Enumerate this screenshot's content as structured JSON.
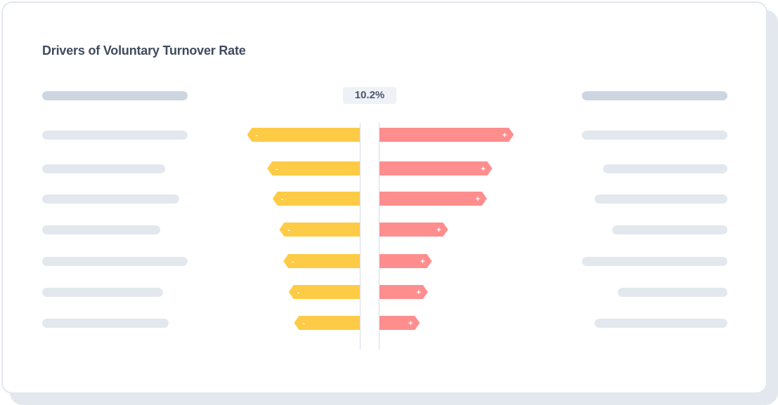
{
  "title": "Drivers of Voluntary Turnover Rate",
  "chart_data": {
    "type": "bar",
    "subtype": "tornado",
    "title": "Drivers of Voluntary Turnover Rate",
    "baseline_label": "10.2%",
    "categories": [
      "",
      "",
      "",
      "",
      "",
      "",
      ""
    ],
    "series": [
      {
        "name": "-",
        "color": "#fdcb45",
        "values": [
          -84,
          -69,
          -65,
          -60,
          -57,
          -53,
          -49
        ]
      },
      {
        "name": "+",
        "color": "#fe8e8e",
        "values": [
          100,
          84,
          80,
          51,
          39,
          36,
          30
        ]
      }
    ],
    "xlim": [
      -100,
      100
    ],
    "grid": false,
    "legend": "none"
  }
}
